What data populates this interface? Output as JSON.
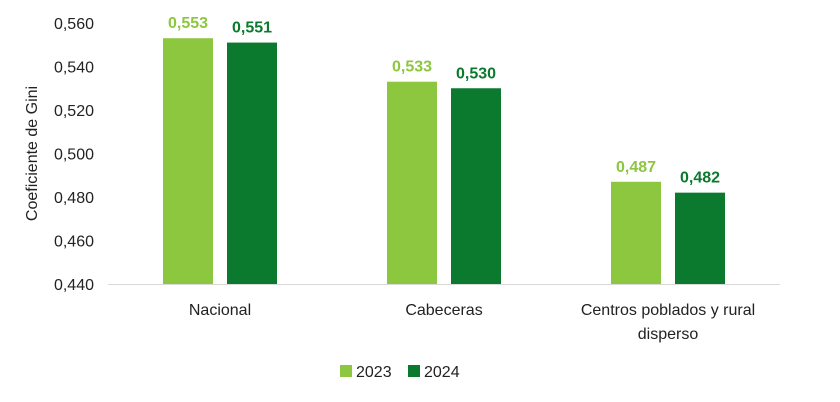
{
  "chart_data": {
    "type": "bar",
    "ylabel": "Coeficiente de Gini",
    "ylim": [
      0.44,
      0.56
    ],
    "yticks": [
      "0,440",
      "0,460",
      "0,480",
      "0,500",
      "0,520",
      "0,540",
      "0,560"
    ],
    "ytick_values": [
      0.44,
      0.46,
      0.48,
      0.5,
      0.52,
      0.54,
      0.56
    ],
    "categories": [
      [
        "Nacional"
      ],
      [
        "Cabeceras"
      ],
      [
        "Centros poblados y rural",
        "disperso"
      ]
    ],
    "series": [
      {
        "name": "2023",
        "color": "#8dc63f",
        "values": [
          0.553,
          0.533,
          0.487
        ],
        "labels": [
          "0,553",
          "0,533",
          "0,487"
        ]
      },
      {
        "name": "2024",
        "color": "#0b7a2e",
        "values": [
          0.551,
          0.53,
          0.482
        ],
        "labels": [
          "0,551",
          "0,530",
          "0,482"
        ]
      }
    ],
    "grid": false,
    "legend": "bottom-center"
  }
}
